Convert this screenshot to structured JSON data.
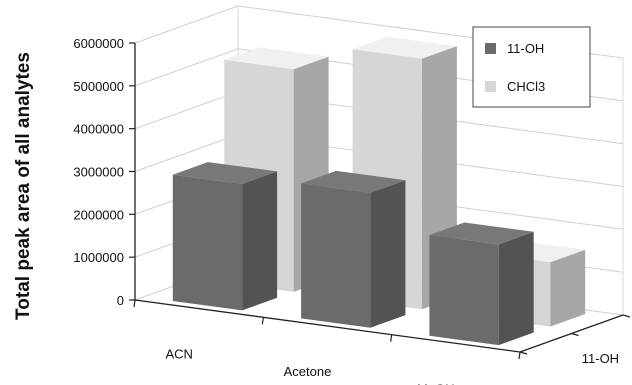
{
  "chart_data": {
    "type": "bar",
    "style": "3d-clustered",
    "ylabel": "Total peak area of all analytes",
    "categories": [
      "ACN",
      "Acetone",
      "MeOH"
    ],
    "depth_labels": [
      "11-OH",
      "CHCl3"
    ],
    "yticks": [
      "0",
      "1000000",
      "2000000",
      "3000000",
      "4000000",
      "5000000",
      "6000000"
    ],
    "ylim": [
      0,
      6000000
    ],
    "grid": true,
    "legend_position": "top-right",
    "series": [
      {
        "name": "11-OH",
        "color": "#6b6b6b",
        "values": [
          2950000,
          3150000,
          2350000
        ]
      },
      {
        "name": "CHCl3",
        "color": "#d6d6d6",
        "values": [
          5200000,
          5850000,
          1500000
        ]
      }
    ]
  }
}
